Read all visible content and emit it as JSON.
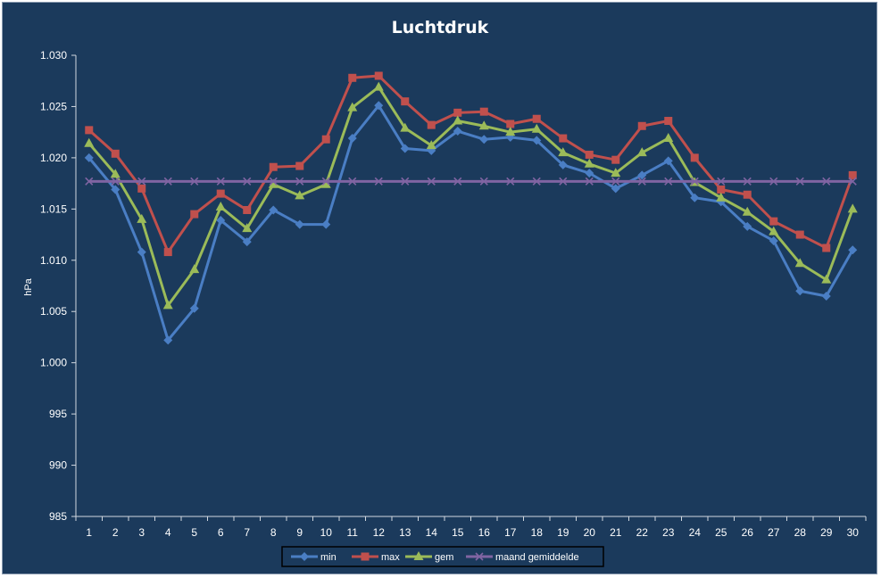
{
  "chart_data": {
    "type": "line",
    "title": "Luchtdruk",
    "xlabel": "",
    "ylabel": "hPa",
    "categories": [
      "1",
      "2",
      "3",
      "4",
      "5",
      "6",
      "7",
      "8",
      "9",
      "10",
      "11",
      "12",
      "13",
      "14",
      "15",
      "16",
      "17",
      "18",
      "19",
      "20",
      "21",
      "22",
      "23",
      "24",
      "25",
      "26",
      "27",
      "28",
      "29",
      "30"
    ],
    "ylim": [
      985,
      1030
    ],
    "yticks": [
      985,
      990,
      995,
      1000,
      1005,
      1010,
      1015,
      1020,
      1025,
      1030
    ],
    "ytick_labels": [
      "985",
      "990",
      "995",
      "1.000",
      "1.005",
      "1.010",
      "1.015",
      "1.020",
      "1.025",
      "1.030"
    ],
    "grid": false,
    "legend_position": "bottom",
    "series": [
      {
        "name": "min",
        "color": "#4a7ec4",
        "marker": "diamond",
        "values": [
          1020.0,
          1016.9,
          1010.8,
          1002.2,
          1005.3,
          1013.9,
          1011.8,
          1014.9,
          1013.5,
          1013.5,
          1021.9,
          1025.1,
          1020.9,
          1020.7,
          1022.6,
          1021.8,
          1022.0,
          1021.7,
          1019.3,
          1018.5,
          1017.0,
          1018.3,
          1019.7,
          1016.1,
          1015.7,
          1013.3,
          1011.9,
          1007.0,
          1006.5,
          1011.0
        ]
      },
      {
        "name": "max",
        "color": "#c0504d",
        "marker": "square",
        "values": [
          1022.7,
          1020.4,
          1017.0,
          1010.8,
          1014.5,
          1016.5,
          1014.9,
          1019.1,
          1019.2,
          1021.8,
          1027.8,
          1028.0,
          1025.5,
          1023.2,
          1024.4,
          1024.5,
          1023.3,
          1023.8,
          1021.9,
          1020.3,
          1019.8,
          1023.1,
          1023.6,
          1020.0,
          1016.9,
          1016.4,
          1013.8,
          1012.5,
          1011.2,
          1018.3
        ]
      },
      {
        "name": "gem",
        "color": "#9bbb59",
        "marker": "triangle",
        "values": [
          1021.4,
          1018.4,
          1014.0,
          1005.6,
          1009.1,
          1015.2,
          1013.1,
          1017.4,
          1016.3,
          1017.4,
          1024.9,
          1026.9,
          1022.9,
          1021.2,
          1023.6,
          1023.1,
          1022.5,
          1022.8,
          1020.5,
          1019.4,
          1018.5,
          1020.5,
          1021.9,
          1017.6,
          1016.1,
          1014.7,
          1012.8,
          1009.7,
          1008.1,
          1015.0
        ]
      },
      {
        "name": "maand gemiddelde",
        "color": "#8064a2",
        "marker": "x",
        "values": [
          1017.7,
          1017.7,
          1017.7,
          1017.7,
          1017.7,
          1017.7,
          1017.7,
          1017.7,
          1017.7,
          1017.7,
          1017.7,
          1017.7,
          1017.7,
          1017.7,
          1017.7,
          1017.7,
          1017.7,
          1017.7,
          1017.7,
          1017.7,
          1017.7,
          1017.7,
          1017.7,
          1017.7,
          1017.7,
          1017.7,
          1017.7,
          1017.7,
          1017.7,
          1017.7
        ]
      }
    ]
  }
}
